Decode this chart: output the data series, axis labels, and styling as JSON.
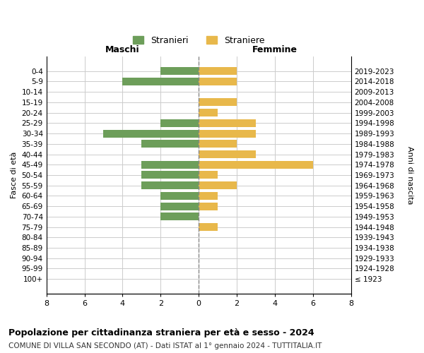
{
  "age_groups": [
    "100+",
    "95-99",
    "90-94",
    "85-89",
    "80-84",
    "75-79",
    "70-74",
    "65-69",
    "60-64",
    "55-59",
    "50-54",
    "45-49",
    "40-44",
    "35-39",
    "30-34",
    "25-29",
    "20-24",
    "15-19",
    "10-14",
    "5-9",
    "0-4"
  ],
  "birth_years": [
    "≤ 1923",
    "1924-1928",
    "1929-1933",
    "1934-1938",
    "1939-1943",
    "1944-1948",
    "1949-1953",
    "1954-1958",
    "1959-1963",
    "1964-1968",
    "1969-1973",
    "1974-1978",
    "1979-1983",
    "1984-1988",
    "1989-1993",
    "1994-1998",
    "1999-2003",
    "2004-2008",
    "2009-2013",
    "2014-2018",
    "2019-2023"
  ],
  "maschi": [
    0,
    0,
    0,
    0,
    0,
    0,
    2,
    2,
    2,
    3,
    3,
    3,
    0,
    3,
    5,
    2,
    0,
    0,
    0,
    4,
    2
  ],
  "femmine": [
    0,
    0,
    0,
    0,
    0,
    1,
    0,
    1,
    1,
    2,
    1,
    6,
    3,
    2,
    3,
    3,
    1,
    2,
    0,
    2,
    2
  ],
  "maschi_color": "#6d9e5a",
  "femmine_color": "#e8b84b",
  "title": "Popolazione per cittadinanza straniera per età e sesso - 2024",
  "subtitle": "COMUNE DI VILLA SAN SECONDO (AT) - Dati ISTAT al 1° gennaio 2024 - TUTTITALIA.IT",
  "ylabel_left": "Fasce di età",
  "ylabel_right": "Anni di nascita",
  "xlabel_left": "Maschi",
  "xlabel_right": "Femmine",
  "legend_stranieri": "Stranieri",
  "legend_straniere": "Straniere",
  "xlim": 8,
  "background_color": "#ffffff",
  "grid_color": "#cccccc"
}
